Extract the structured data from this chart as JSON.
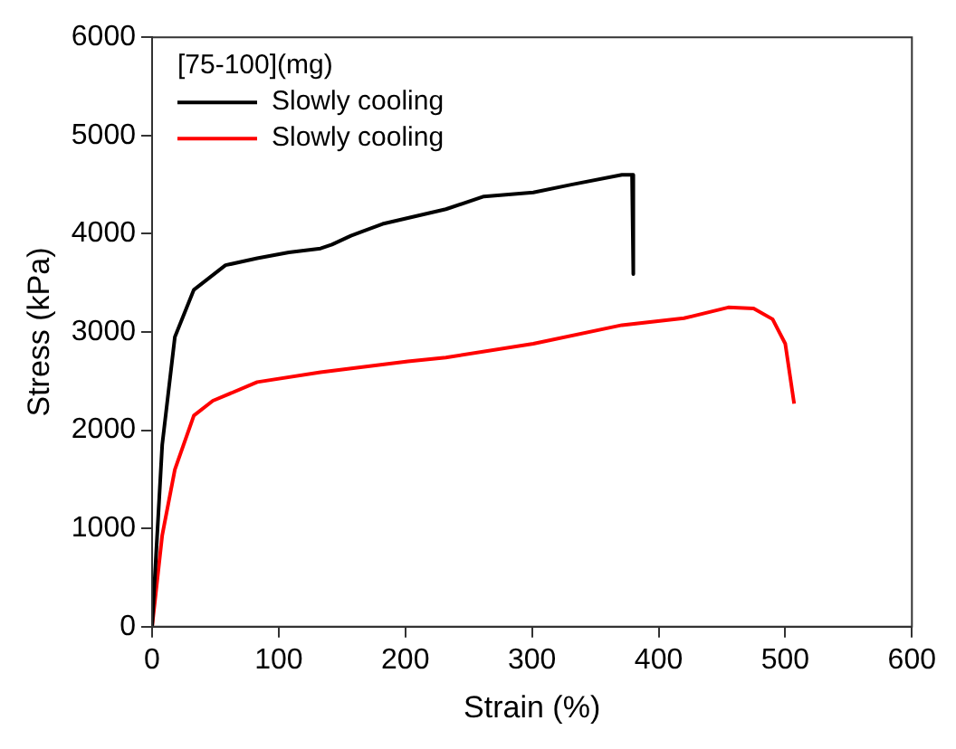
{
  "chart_data": {
    "type": "line",
    "xlabel": "Strain (%)",
    "ylabel": "Stress (kPa)",
    "legend_title": "[75-100](mg)",
    "legend": "top left",
    "grid": false,
    "marker": "none",
    "line_style": "solid",
    "xlim": [
      0,
      600
    ],
    "xticks": [
      0,
      100,
      200,
      300,
      400,
      500,
      600
    ],
    "ylim": [
      0,
      6000
    ],
    "yticks": [
      0,
      1000,
      2000,
      3000,
      4000,
      5000,
      6000
    ],
    "series": [
      {
        "name": "Slowly cooling",
        "color": "#000000",
        "x": [
          0,
          8,
          18,
          33,
          58,
          83,
          108,
          133,
          142,
          157,
          182,
          232,
          262,
          301,
          331,
          371,
          379,
          380
        ],
        "values": [
          0,
          1850,
          2950,
          3430,
          3680,
          3750,
          3810,
          3850,
          3890,
          3980,
          4100,
          4250,
          4380,
          4420,
          4500,
          4600,
          4600,
          3590
        ]
      },
      {
        "name": "Slowly cooling",
        "color": "#ff0000",
        "x": [
          0,
          8,
          18,
          33,
          48,
          83,
          133,
          202,
          232,
          301,
          371,
          420,
          455,
          475,
          490,
          500,
          507
        ],
        "values": [
          0,
          930,
          1600,
          2150,
          2300,
          2490,
          2590,
          2700,
          2740,
          2880,
          3070,
          3140,
          3250,
          3240,
          3130,
          2880,
          2270
        ]
      }
    ]
  }
}
